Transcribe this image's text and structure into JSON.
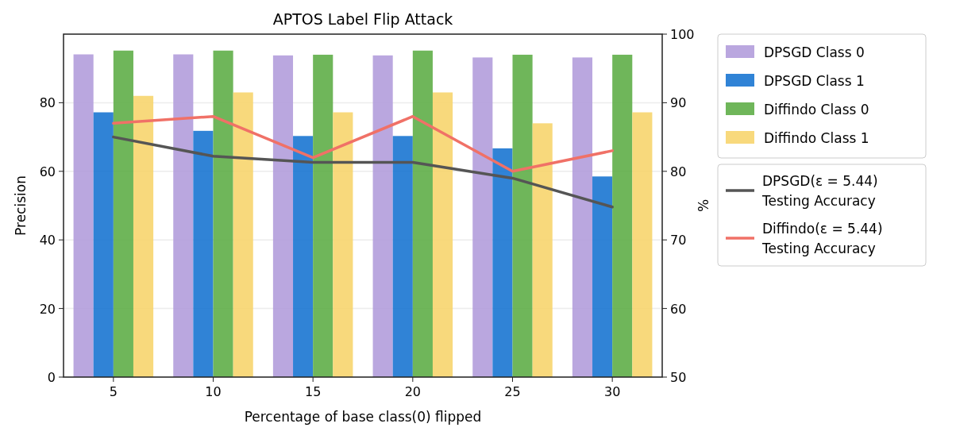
{
  "chart_data": {
    "type": "bar",
    "title": "APTOS Label Flip Attack",
    "xlabel": "Percentage of base class(0) flipped",
    "ylabel": "Precision",
    "y2label": "%",
    "categories": [
      "5",
      "10",
      "15",
      "20",
      "25",
      "30"
    ],
    "series": [
      {
        "name": "DPSGD Class 0",
        "color": "#b39ddb",
        "values": [
          94.1,
          94.1,
          93.8,
          93.8,
          93.2,
          93.2
        ]
      },
      {
        "name": "DPSGD Class 1",
        "color": "#1976d2",
        "values": [
          77.2,
          71.8,
          70.3,
          70.3,
          66.7,
          58.5
        ]
      },
      {
        "name": "Diffindo Class 0",
        "color": "#5fae48",
        "values": [
          95.2,
          95.2,
          94,
          95.2,
          94,
          94
        ]
      },
      {
        "name": "Diffindo Class 1",
        "color": "#f7d56e",
        "values": [
          82,
          83,
          77.2,
          83,
          74,
          77.2
        ]
      },
      {
        "name": "DPSGD(ε = 5.44)\nTesting Accuracy",
        "type": "line",
        "axis": "y2",
        "color": "#555555",
        "values": [
          85,
          82.2,
          81.3,
          81.3,
          79,
          74.8
        ]
      },
      {
        "name": "Diffindo(ε = 5.44)\nTesting Accuracy",
        "type": "line",
        "axis": "y2",
        "color": "#f07167",
        "values": [
          87,
          88,
          82,
          88,
          80,
          83
        ]
      }
    ],
    "ylim": [
      0,
      100
    ],
    "yticks": [
      0,
      20,
      40,
      60,
      80
    ],
    "y2lim": [
      50,
      100
    ],
    "y2ticks": [
      50,
      60,
      70,
      80,
      90,
      100
    ],
    "grid": "y",
    "legend": "right"
  }
}
